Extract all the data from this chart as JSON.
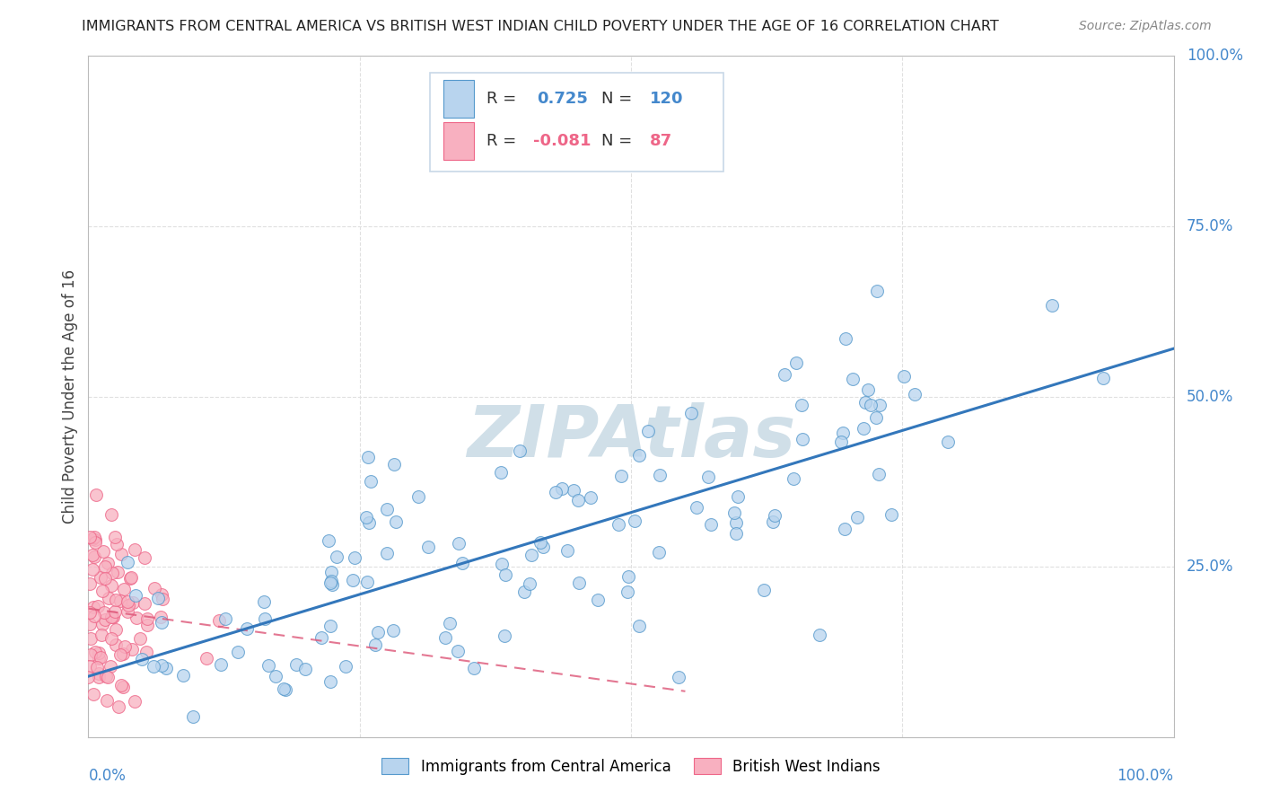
{
  "title": "IMMIGRANTS FROM CENTRAL AMERICA VS BRITISH WEST INDIAN CHILD POVERTY UNDER THE AGE OF 16 CORRELATION CHART",
  "source": "Source: ZipAtlas.com",
  "ylabel": "Child Poverty Under the Age of 16",
  "r_blue": 0.725,
  "n_blue": 120,
  "r_pink": -0.081,
  "n_pink": 87,
  "blue_fill": "#b8d4ee",
  "blue_edge": "#5599cc",
  "blue_line": "#3377bb",
  "pink_fill": "#f8b0c0",
  "pink_edge": "#ee6688",
  "pink_line": "#dd5577",
  "legend_blue_label": "Immigrants from Central America",
  "legend_pink_label": "British West Indians",
  "watermark_color": "#d0dfe8",
  "bg_color": "#ffffff",
  "grid_color": "#e0e0e0",
  "title_color": "#222222",
  "source_color": "#888888",
  "tick_label_color": "#4488cc",
  "axis_label_color": "#444444"
}
